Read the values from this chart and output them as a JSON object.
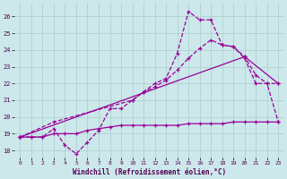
{
  "xlabel": "Windchill (Refroidissement éolien,°C)",
  "bg_color": "#cce8ea",
  "grid_color": "#aacccc",
  "line_color": "#990099",
  "xlim": [
    -0.5,
    23.5
  ],
  "ylim": [
    17.6,
    26.8
  ],
  "yticks": [
    18,
    19,
    20,
    21,
    22,
    23,
    24,
    25,
    26
  ],
  "xticks": [
    0,
    1,
    2,
    3,
    4,
    5,
    6,
    7,
    8,
    9,
    10,
    11,
    12,
    13,
    14,
    15,
    16,
    17,
    18,
    19,
    20,
    21,
    22,
    23
  ],
  "curve1_x": [
    0,
    1,
    2,
    3,
    4,
    5,
    6,
    7,
    8,
    9,
    10,
    11,
    12,
    13,
    14,
    15,
    16,
    17,
    18,
    19,
    20,
    21,
    22,
    23
  ],
  "curve1_y": [
    18.8,
    18.8,
    18.8,
    19.3,
    18.3,
    17.8,
    18.5,
    19.2,
    20.5,
    20.5,
    21.0,
    21.5,
    22.0,
    22.3,
    23.8,
    26.3,
    25.8,
    25.8,
    24.3,
    24.2,
    23.5,
    22.0,
    22.0,
    19.7
  ],
  "curve2_x": [
    0,
    3,
    10,
    11,
    12,
    13,
    14,
    15,
    16,
    17,
    18,
    19,
    20,
    21,
    22,
    23
  ],
  "curve2_y": [
    18.8,
    19.7,
    21.0,
    21.5,
    21.8,
    22.2,
    22.8,
    23.5,
    24.1,
    24.6,
    24.3,
    24.2,
    23.6,
    22.5,
    22.0,
    22.0
  ],
  "line3_x": [
    0,
    20,
    23
  ],
  "line3_y": [
    18.8,
    23.6,
    22.0
  ],
  "curve4_x": [
    0,
    1,
    2,
    3,
    4,
    5,
    6,
    7,
    8,
    9,
    10,
    11,
    12,
    13,
    14,
    15,
    16,
    17,
    18,
    19,
    20,
    21,
    22,
    23
  ],
  "curve4_y": [
    18.8,
    18.8,
    18.8,
    19.0,
    19.0,
    19.0,
    19.2,
    19.3,
    19.4,
    19.5,
    19.5,
    19.5,
    19.5,
    19.5,
    19.5,
    19.6,
    19.6,
    19.6,
    19.6,
    19.7,
    19.7,
    19.7,
    19.7,
    19.7
  ]
}
